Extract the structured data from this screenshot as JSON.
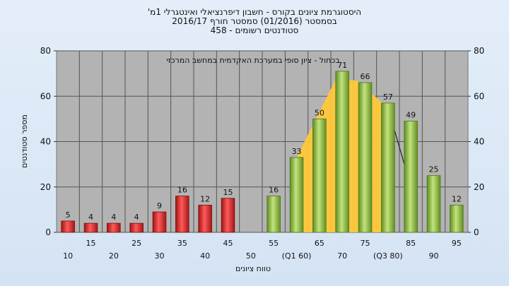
{
  "header": {
    "title_line1": "'היסטוגרמת ציונים בקורס - חשבון דיפרנציאלי ואינטגרלי 1מ",
    "title_line2": "בסמסטר  (01/2016)  סמסטר חורף 2016/17",
    "title_line3": "סטודנטים רשומים - 458"
  },
  "chart_data": {
    "type": "bar",
    "title": "'היסטוגרמת ציונים בקורס - חשבון דיפרנציאלי ואינטגרלי 1מ",
    "annotation": "בכחול - ציון סופי במערכת האקדמית במחשב המרכזי",
    "xlabel": "טווח ציונים",
    "ylabel": "מספר סטודנטים",
    "ylim": [
      0,
      80
    ],
    "yticks": [
      0,
      20,
      40,
      60,
      80
    ],
    "grid": true,
    "categories": [
      "10",
      "15",
      "20",
      "25",
      "30",
      "35",
      "40",
      "45",
      "50",
      "55",
      "60",
      "65",
      "70",
      "75",
      "80",
      "85",
      "90",
      "95"
    ],
    "category_labels": [
      "10",
      "15",
      "20",
      "25",
      "30",
      "35",
      "40",
      "45",
      "50",
      "55",
      "(Q1 60)",
      "65",
      "70",
      "75",
      "(Q3 80)",
      "85",
      "90",
      "95"
    ],
    "values": [
      5,
      4,
      4,
      4,
      9,
      16,
      12,
      15,
      0,
      16,
      33,
      50,
      71,
      66,
      57,
      49,
      25,
      12
    ],
    "value_labels": [
      "5",
      "4",
      "4",
      "4",
      "9",
      "16",
      "12",
      "15",
      "",
      "16",
      "33",
      "50",
      "71",
      "66",
      "57",
      "49",
      "25",
      "12"
    ],
    "colors": {
      "fail": "#e53535",
      "pass": "#8fbf3f",
      "box": "#ffc83a",
      "plot_bg": "#b3b3b3"
    },
    "fail_below": 55,
    "box_plot": {
      "q1": 60,
      "median": 70,
      "q3": 80,
      "whisker_high": 85
    }
  }
}
